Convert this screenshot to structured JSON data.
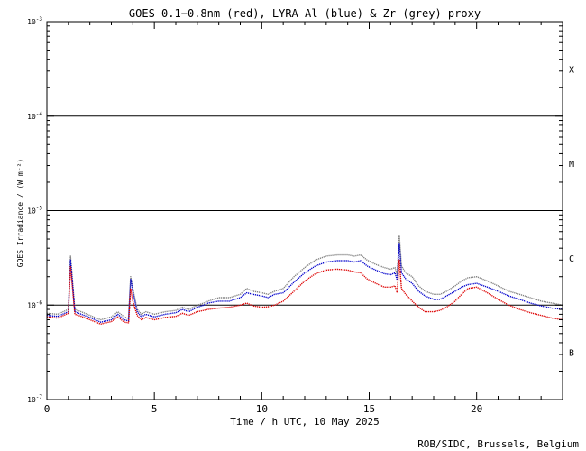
{
  "chart_data": {
    "type": "line",
    "title": "GOES 0.1−0.8nm (red), LYRA Al (blue) & Zr (grey) proxy",
    "xlabel": "Time / h UTC, 10 May 2025",
    "ylabel": "GOES Irradiance / (W m⁻²)",
    "credit": "ROB/SIDC, Brussels, Belgium",
    "xlim": [
      0,
      24
    ],
    "ylim": [
      1e-07,
      0.001
    ],
    "yscale": "log",
    "x_ticks": [
      "0",
      "5",
      "10",
      "15",
      "20"
    ],
    "y_ticks": [
      {
        "base": "10",
        "exp": "-7"
      },
      {
        "base": "10",
        "exp": "-6"
      },
      {
        "base": "10",
        "exp": "-5"
      },
      {
        "base": "10",
        "exp": "-4"
      },
      {
        "base": "10",
        "exp": "-3"
      }
    ],
    "class_labels": [
      "B",
      "C",
      "M",
      "X"
    ],
    "class_thresholds": [
      1e-06,
      1e-05,
      0.0001
    ],
    "series": [
      {
        "color": "#808080",
        "x": [
          0,
          0.5,
          1.0,
          1.1,
          1.3,
          1.6,
          2,
          2.5,
          3,
          3.3,
          3.6,
          3.8,
          3.9,
          4.0,
          4.2,
          4.4,
          4.6,
          5,
          5.5,
          6,
          6.3,
          6.6,
          7,
          7.3,
          7.5,
          8,
          8.5,
          9,
          9.3,
          9.6,
          10,
          10.3,
          10.6,
          11,
          11.5,
          12,
          12.5,
          13,
          13.5,
          14,
          14.3,
          14.6,
          14.9,
          15.3,
          15.7,
          16,
          16.2,
          16.3,
          16.4,
          16.5,
          16.7,
          17,
          17.3,
          17.6,
          18,
          18.3,
          18.6,
          19,
          19.3,
          19.6,
          20,
          20.5,
          21,
          21.5,
          22,
          22.5,
          23,
          23.5,
          24
        ],
        "values": [
          8.2e-07,
          8e-07,
          9e-07,
          3.3e-06,
          9e-07,
          8.5e-07,
          7.8e-07,
          7e-07,
          7.5e-07,
          8.5e-07,
          7.5e-07,
          7.2e-07,
          2e-06,
          1.5e-06,
          9e-07,
          8e-07,
          8.5e-07,
          8e-07,
          8.5e-07,
          8.8e-07,
          9.5e-07,
          9e-07,
          1e-06,
          1.05e-06,
          1.1e-06,
          1.2e-06,
          1.2e-06,
          1.3e-06,
          1.5e-06,
          1.4e-06,
          1.35e-06,
          1.3e-06,
          1.4e-06,
          1.5e-06,
          2e-06,
          2.5e-06,
          3e-06,
          3.3e-06,
          3.4e-06,
          3.4e-06,
          3.3e-06,
          3.4e-06,
          3e-06,
          2.7e-06,
          2.5e-06,
          2.4e-06,
          2.5e-06,
          2.1e-06,
          5.5e-06,
          2.6e-06,
          2.2e-06,
          2e-06,
          1.6e-06,
          1.4e-06,
          1.3e-06,
          1.3e-06,
          1.4e-06,
          1.6e-06,
          1.8e-06,
          1.95e-06,
          2e-06,
          1.8e-06,
          1.6e-06,
          1.4e-06,
          1.3e-06,
          1.2e-06,
          1.1e-06,
          1.05e-06,
          1e-06
        ]
      },
      {
        "color": "#0000cc",
        "x": [
          0,
          0.5,
          1.0,
          1.1,
          1.3,
          1.6,
          2,
          2.5,
          3,
          3.3,
          3.6,
          3.8,
          3.9,
          4.0,
          4.2,
          4.4,
          4.6,
          5,
          5.5,
          6,
          6.3,
          6.6,
          7,
          7.3,
          7.5,
          8,
          8.5,
          9,
          9.3,
          9.6,
          10,
          10.3,
          10.6,
          11,
          11.5,
          12,
          12.5,
          13,
          13.5,
          14,
          14.3,
          14.6,
          14.9,
          15.3,
          15.7,
          16,
          16.2,
          16.3,
          16.4,
          16.5,
          16.7,
          17,
          17.3,
          17.6,
          18,
          18.3,
          18.6,
          19,
          19.3,
          19.6,
          20,
          20.5,
          21,
          21.5,
          22,
          22.5,
          23,
          23.5,
          24
        ],
        "values": [
          7.8e-07,
          7.6e-07,
          8.5e-07,
          3e-06,
          8.5e-07,
          8e-07,
          7.4e-07,
          6.6e-07,
          7e-07,
          8e-07,
          7e-07,
          6.8e-07,
          1.9e-06,
          1.4e-06,
          8.5e-07,
          7.5e-07,
          8e-07,
          7.5e-07,
          8e-07,
          8.3e-07,
          9e-07,
          8.5e-07,
          9.5e-07,
          1e-06,
          1.05e-06,
          1.1e-06,
          1.1e-06,
          1.2e-06,
          1.35e-06,
          1.3e-06,
          1.25e-06,
          1.2e-06,
          1.3e-06,
          1.35e-06,
          1.75e-06,
          2.2e-06,
          2.6e-06,
          2.85e-06,
          2.95e-06,
          2.95e-06,
          2.85e-06,
          2.95e-06,
          2.6e-06,
          2.35e-06,
          2.15e-06,
          2.1e-06,
          2.2e-06,
          1.85e-06,
          4.5e-06,
          2.2e-06,
          1.9e-06,
          1.7e-06,
          1.4e-06,
          1.25e-06,
          1.15e-06,
          1.15e-06,
          1.25e-06,
          1.4e-06,
          1.55e-06,
          1.65e-06,
          1.7e-06,
          1.55e-06,
          1.4e-06,
          1.25e-06,
          1.15e-06,
          1.05e-06,
          9.8e-07,
          9.3e-07,
          9e-07
        ]
      },
      {
        "color": "#dd0000",
        "x": [
          0,
          0.5,
          1.0,
          1.1,
          1.3,
          1.6,
          2,
          2.5,
          3,
          3.3,
          3.6,
          3.8,
          3.9,
          4.0,
          4.2,
          4.4,
          4.6,
          5,
          5.5,
          6,
          6.3,
          6.6,
          7,
          7.3,
          7.5,
          8,
          8.5,
          9,
          9.3,
          9.6,
          10,
          10.3,
          10.6,
          11,
          11.5,
          12,
          12.5,
          13,
          13.5,
          14,
          14.3,
          14.6,
          14.9,
          15.3,
          15.7,
          16,
          16.2,
          16.3,
          16.4,
          16.5,
          16.7,
          17,
          17.3,
          17.6,
          18,
          18.3,
          18.6,
          19,
          19.3,
          19.6,
          20,
          20.5,
          21,
          21.5,
          22,
          22.5,
          23,
          23.5,
          24
        ],
        "values": [
          7.5e-07,
          7.3e-07,
          8.2e-07,
          2.6e-06,
          8e-07,
          7.6e-07,
          7e-07,
          6.3e-07,
          6.7e-07,
          7.5e-07,
          6.6e-07,
          6.5e-07,
          1.5e-06,
          1.1e-06,
          7.8e-07,
          7e-07,
          7.4e-07,
          7e-07,
          7.4e-07,
          7.6e-07,
          8.2e-07,
          7.8e-07,
          8.5e-07,
          8.8e-07,
          9e-07,
          9.3e-07,
          9.5e-07,
          1e-06,
          1.05e-06,
          9.8e-07,
          9.5e-07,
          9.6e-07,
          1e-06,
          1.1e-06,
          1.4e-06,
          1.8e-06,
          2.15e-06,
          2.35e-06,
          2.4e-06,
          2.35e-06,
          2.25e-06,
          2.2e-06,
          1.9e-06,
          1.7e-06,
          1.55e-06,
          1.55e-06,
          1.6e-06,
          1.35e-06,
          3e-06,
          1.5e-06,
          1.3e-06,
          1.1e-06,
          9.5e-07,
          8.5e-07,
          8.5e-07,
          8.8e-07,
          9.5e-07,
          1.1e-06,
          1.3e-06,
          1.5e-06,
          1.55e-06,
          1.35e-06,
          1.15e-06,
          1e-06,
          9e-07,
          8.3e-07,
          7.8e-07,
          7.3e-07,
          7e-07
        ]
      }
    ]
  }
}
